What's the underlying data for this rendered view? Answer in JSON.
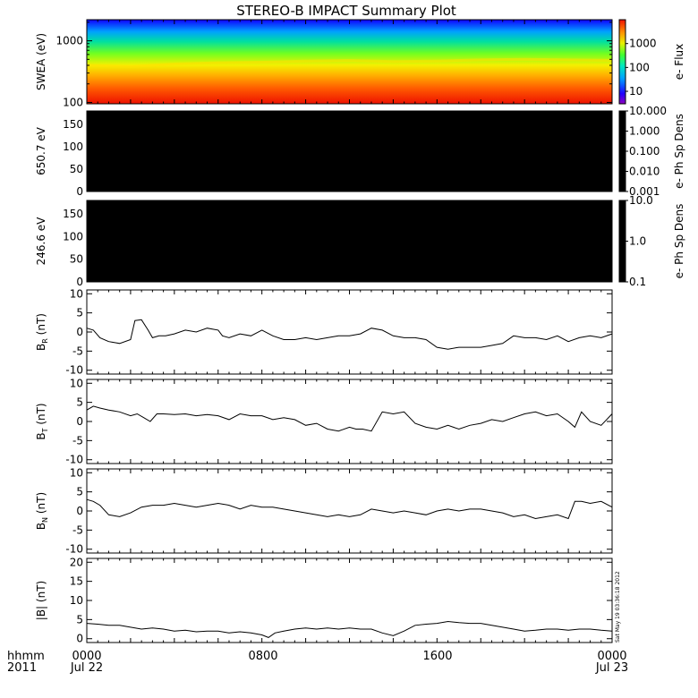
{
  "title": "STEREO-B IMPACT Summary Plot",
  "side_stamp": "Sat May 19 03:36:18 2012",
  "time_axis": {
    "row1_labels": [
      "0000",
      "0800",
      "1600",
      "0000"
    ],
    "row2_labels": [
      "Jul 22",
      "",
      "",
      "Jul 23"
    ],
    "row1_caption": "hhmm",
    "row2_caption": "2011",
    "hours": [
      0,
      8,
      16,
      24
    ],
    "range_hours": [
      0,
      24
    ]
  },
  "colors": {
    "spectrogram_low": "#ee1100",
    "spectrogram_high": "#1000ff",
    "pad_background": "#000000",
    "trace": "#000000"
  },
  "chart_data": [
    {
      "type": "heatmap",
      "panel": "swea-spectrogram",
      "ylabel": "SWEA (eV)",
      "yscale": "log",
      "ylim": [
        95,
        2200
      ],
      "yticks": [
        100,
        1000
      ],
      "ytick_labels": [
        "100",
        "1000"
      ],
      "colorbar": {
        "label": "e- Flux",
        "scale": "log",
        "range": [
          3,
          10000
        ],
        "ticks": [
          10,
          100,
          1000
        ],
        "tick_labels": [
          "10",
          "100",
          "1000"
        ]
      },
      "x_hours": [
        0,
        2,
        4,
        6,
        8,
        10,
        12,
        14,
        16,
        18,
        20,
        22,
        24
      ],
      "yellow_boundary_ev": [
        400,
        380,
        420,
        440,
        450,
        470,
        480,
        460,
        470,
        490,
        500,
        490,
        480
      ]
    },
    {
      "type": "heatmap",
      "panel": "pad-650",
      "ylabel": "650.7 eV",
      "ylim": [
        0,
        180
      ],
      "yticks": [
        0,
        50,
        100,
        150
      ],
      "ytick_labels": [
        "0",
        "50",
        "100",
        "150"
      ],
      "colorbar": {
        "label": "e- Ph Sp Dens",
        "scale": "log",
        "range": [
          0.001,
          10
        ],
        "ticks": [
          0.001,
          0.01,
          0.1,
          1,
          10
        ],
        "tick_labels": [
          "0.001",
          "0.010",
          "0.100",
          "1.000",
          "10.000"
        ]
      }
    },
    {
      "type": "heatmap",
      "panel": "pad-246",
      "ylabel": "246.6 eV",
      "ylim": [
        0,
        180
      ],
      "yticks": [
        0,
        50,
        100,
        150
      ],
      "ytick_labels": [
        "0",
        "50",
        "100",
        "150"
      ],
      "colorbar": {
        "label": "e- Ph Sp Dens",
        "scale": "log",
        "range": [
          0.1,
          10
        ],
        "ticks": [
          0.1,
          1,
          10
        ],
        "tick_labels": [
          "0.1",
          "1.0",
          "10.0"
        ]
      }
    },
    {
      "type": "line",
      "panel": "br",
      "ylabel_main": "B",
      "ylabel_sub": "R",
      "ylabel_unit": " (nT)",
      "ylim": [
        -11,
        11
      ],
      "yticks": [
        -10,
        -5,
        0,
        5,
        10
      ],
      "ytick_labels": [
        "-10",
        "-5",
        "0",
        "5",
        "10"
      ],
      "x": [
        0,
        0.3,
        0.6,
        1.0,
        1.5,
        2.0,
        2.2,
        2.5,
        2.8,
        3.0,
        3.3,
        3.6,
        4.0,
        4.5,
        5.0,
        5.5,
        6.0,
        6.2,
        6.5,
        7.0,
        7.5,
        8.0,
        8.5,
        9.0,
        9.5,
        10.0,
        10.5,
        11.0,
        11.5,
        12.0,
        12.5,
        13.0,
        13.5,
        14.0,
        14.5,
        15.0,
        15.5,
        16.0,
        16.5,
        17.0,
        17.5,
        18.0,
        18.5,
        19.0,
        19.5,
        20.0,
        20.5,
        21.0,
        21.5,
        22.0,
        22.5,
        23.0,
        23.5,
        24.0
      ],
      "y": [
        1.0,
        0.5,
        -1.5,
        -2.5,
        -3.0,
        -2.0,
        3.0,
        3.2,
        0.5,
        -1.5,
        -1.0,
        -1.0,
        -0.5,
        0.5,
        0.0,
        1.0,
        0.5,
        -1.0,
        -1.5,
        -0.5,
        -1.0,
        0.5,
        -1.0,
        -2.0,
        -2.0,
        -1.5,
        -2.0,
        -1.5,
        -1.0,
        -1.0,
        -0.5,
        1.0,
        0.5,
        -1.0,
        -1.5,
        -1.5,
        -2.0,
        -4.0,
        -4.5,
        -4.0,
        -4.0,
        -4.0,
        -3.5,
        -3.0,
        -1.0,
        -1.5,
        -1.5,
        -2.0,
        -1.0,
        -2.5,
        -1.5,
        -1.0,
        -1.5,
        -0.5
      ]
    },
    {
      "type": "line",
      "panel": "bt",
      "ylabel_main": "B",
      "ylabel_sub": "T",
      "ylabel_unit": " (nT)",
      "ylim": [
        -11,
        11
      ],
      "yticks": [
        -10,
        -5,
        0,
        5,
        10
      ],
      "ytick_labels": [
        "-10",
        "-5",
        "0",
        "5",
        "10"
      ],
      "x": [
        0,
        0.3,
        0.6,
        1.0,
        1.5,
        2.0,
        2.3,
        2.6,
        2.9,
        3.2,
        3.5,
        4.0,
        4.5,
        5.0,
        5.5,
        6.0,
        6.5,
        7.0,
        7.5,
        8.0,
        8.5,
        9.0,
        9.5,
        10.0,
        10.5,
        11.0,
        11.5,
        12.0,
        12.3,
        12.6,
        13.0,
        13.5,
        14.0,
        14.5,
        15.0,
        15.5,
        16.0,
        16.5,
        17.0,
        17.5,
        18.0,
        18.5,
        19.0,
        19.5,
        20.0,
        20.5,
        21.0,
        21.5,
        22.0,
        22.3,
        22.6,
        23.0,
        23.5,
        24.0
      ],
      "y": [
        3.0,
        4.0,
        3.5,
        3.0,
        2.5,
        1.5,
        2.0,
        1.0,
        0.0,
        2.0,
        2.0,
        1.8,
        2.0,
        1.5,
        1.8,
        1.5,
        0.5,
        2.0,
        1.5,
        1.5,
        0.5,
        1.0,
        0.5,
        -1.0,
        -0.5,
        -2.0,
        -2.5,
        -1.5,
        -2.0,
        -2.0,
        -2.5,
        2.5,
        2.0,
        2.5,
        -0.5,
        -1.5,
        -2.0,
        -1.0,
        -2.0,
        -1.0,
        -0.5,
        0.5,
        0.0,
        1.0,
        2.0,
        2.5,
        1.5,
        2.0,
        0.0,
        -1.5,
        2.5,
        0.0,
        -1.0,
        2.0
      ]
    },
    {
      "type": "line",
      "panel": "bn",
      "ylabel_main": "B",
      "ylabel_sub": "N",
      "ylabel_unit": " (nT)",
      "ylim": [
        -11,
        11
      ],
      "yticks": [
        -10,
        -5,
        0,
        5,
        10
      ],
      "ytick_labels": [
        "-10",
        "-5",
        "0",
        "5",
        "10"
      ],
      "x": [
        0,
        0.3,
        0.6,
        1.0,
        1.5,
        2.0,
        2.5,
        3.0,
        3.5,
        4.0,
        4.5,
        5.0,
        5.5,
        6.0,
        6.5,
        7.0,
        7.5,
        8.0,
        8.5,
        9.0,
        9.5,
        10.0,
        10.5,
        11.0,
        11.5,
        12.0,
        12.5,
        13.0,
        13.5,
        14.0,
        14.5,
        15.0,
        15.5,
        16.0,
        16.5,
        17.0,
        17.5,
        18.0,
        18.5,
        19.0,
        19.5,
        20.0,
        20.5,
        21.0,
        21.5,
        22.0,
        22.3,
        22.6,
        23.0,
        23.5,
        24.0
      ],
      "y": [
        3.0,
        2.5,
        1.5,
        -1.0,
        -1.5,
        -0.5,
        1.0,
        1.5,
        1.5,
        2.0,
        1.5,
        1.0,
        1.5,
        2.0,
        1.5,
        0.5,
        1.5,
        1.0,
        1.0,
        0.5,
        0.0,
        -0.5,
        -1.0,
        -1.5,
        -1.0,
        -1.5,
        -1.0,
        0.5,
        0.0,
        -0.5,
        0.0,
        -0.5,
        -1.0,
        0.0,
        0.5,
        0.0,
        0.5,
        0.5,
        0.0,
        -0.5,
        -1.5,
        -1.0,
        -2.0,
        -1.5,
        -1.0,
        -2.0,
        2.5,
        2.5,
        2.0,
        2.5,
        1.0
      ]
    },
    {
      "type": "line",
      "panel": "bmag",
      "ylabel_main": "|B|",
      "ylabel_sub": "",
      "ylabel_unit": " (nT)",
      "ylim": [
        -1,
        21
      ],
      "yticks": [
        0,
        5,
        10,
        15,
        20
      ],
      "ytick_labels": [
        "0",
        "5",
        "10",
        "15",
        "20"
      ],
      "x": [
        0,
        0.5,
        1.0,
        1.5,
        2.0,
        2.5,
        3.0,
        3.5,
        4.0,
        4.5,
        5.0,
        5.5,
        6.0,
        6.5,
        7.0,
        7.5,
        8.0,
        8.3,
        8.6,
        9.0,
        9.5,
        10.0,
        10.5,
        11.0,
        11.5,
        12.0,
        12.5,
        13.0,
        13.5,
        14.0,
        14.5,
        15.0,
        15.5,
        16.0,
        16.5,
        17.0,
        17.5,
        18.0,
        18.5,
        19.0,
        19.5,
        20.0,
        20.5,
        21.0,
        21.5,
        22.0,
        22.5,
        23.0,
        23.5,
        24.0
      ],
      "y": [
        4.0,
        3.8,
        3.5,
        3.5,
        3.0,
        2.5,
        2.8,
        2.5,
        2.0,
        2.2,
        1.8,
        2.0,
        2.0,
        1.5,
        1.8,
        1.5,
        1.0,
        0.3,
        1.5,
        2.0,
        2.5,
        2.8,
        2.5,
        2.8,
        2.5,
        2.8,
        2.5,
        2.5,
        1.5,
        0.8,
        2.0,
        3.5,
        3.8,
        4.0,
        4.5,
        4.2,
        4.0,
        4.0,
        3.5,
        3.0,
        2.5,
        2.0,
        2.2,
        2.5,
        2.5,
        2.2,
        2.5,
        2.5,
        2.2,
        2.0
      ]
    }
  ]
}
